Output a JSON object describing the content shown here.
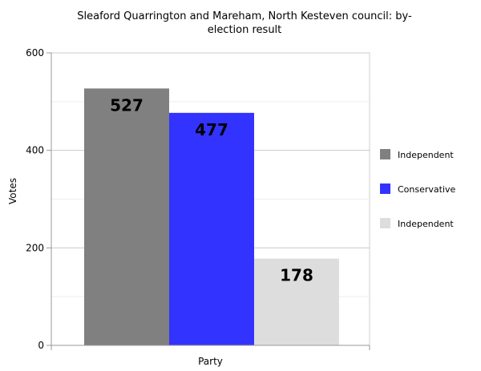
{
  "chart_data": {
    "type": "bar",
    "title": "Sleaford Quarrington and Mareham, North Kesteven council: by-election result",
    "title_lines": [
      "Sleaford Quarrington and Mareham, North Kesteven council: by-",
      "election result"
    ],
    "xlabel": "Party",
    "ylabel": "Votes",
    "ylim": [
      0,
      600
    ],
    "yticks": [
      0,
      200,
      400,
      600
    ],
    "grid": true,
    "legend_position": "right",
    "series": [
      {
        "name": "Independent",
        "values": [
          527
        ],
        "color": "#808080"
      },
      {
        "name": "Conservative",
        "values": [
          477
        ],
        "color": "#3333ff"
      },
      {
        "name": "Independent",
        "values": [
          178
        ],
        "color": "#dddddd"
      }
    ]
  }
}
